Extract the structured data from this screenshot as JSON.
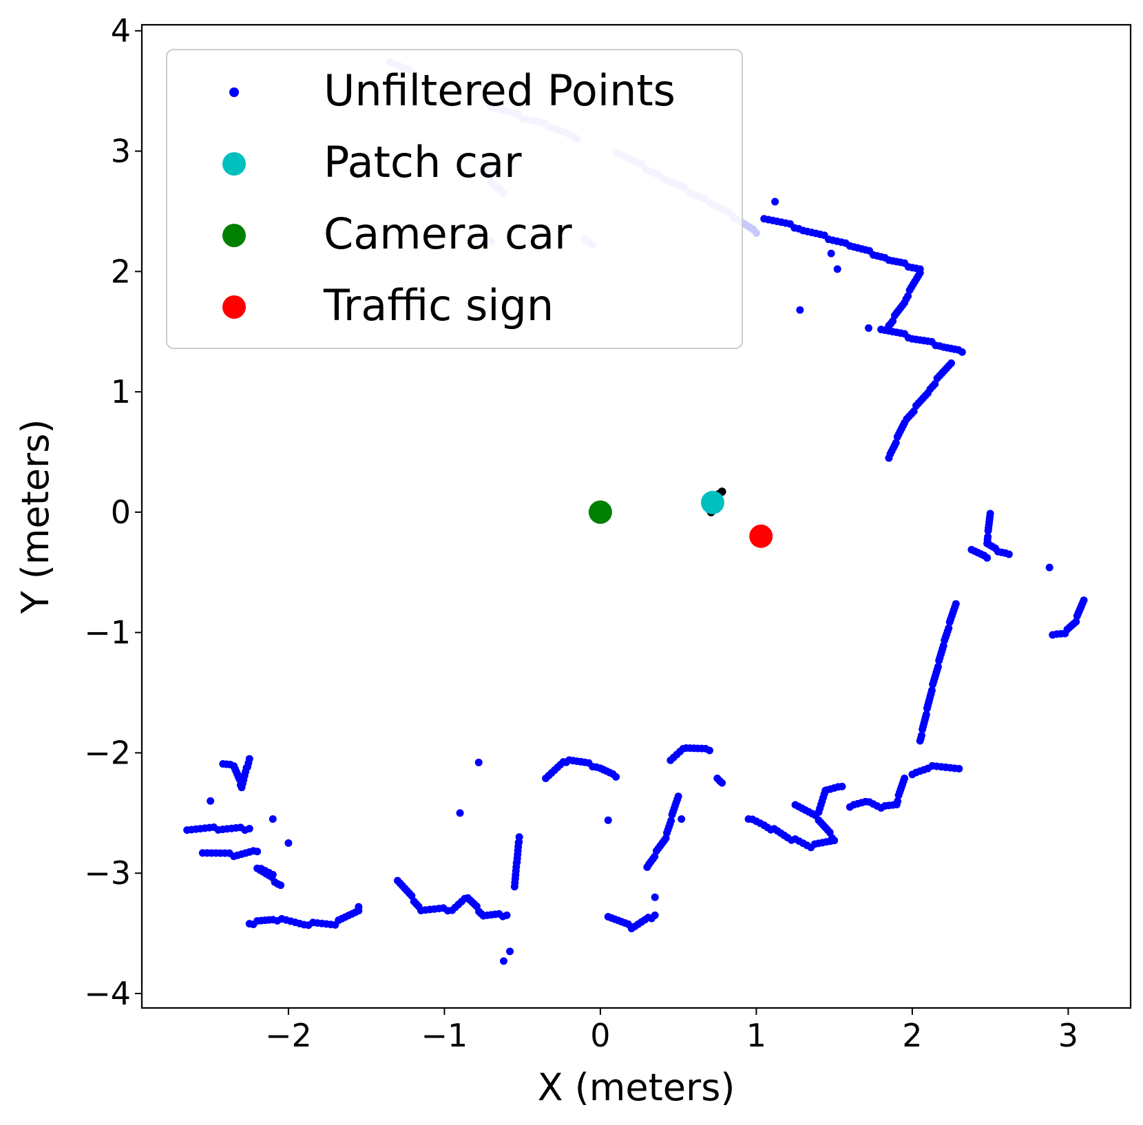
{
  "chart_data": {
    "type": "scatter",
    "title": "",
    "xlabel": "X (meters)",
    "ylabel": "Y (meters)",
    "xlim": [
      -2.94,
      3.4
    ],
    "ylim": [
      -4.12,
      4.05
    ],
    "xticks": [
      -2,
      -1,
      0,
      1,
      2,
      3
    ],
    "yticks": [
      -4,
      -3,
      -2,
      -1,
      0,
      1,
      2,
      3,
      4
    ],
    "xtick_labels": [
      "−2",
      "−1",
      "0",
      "1",
      "2",
      "3"
    ],
    "ytick_labels": [
      "−4",
      "−3",
      "−2",
      "−1",
      "0",
      "1",
      "2",
      "3",
      "4"
    ],
    "grid": false,
    "legend_position": "upper-left",
    "series": [
      {
        "name": "Unfiltered Points",
        "color": "#0000ff",
        "faded_color": "#c8c8ff",
        "faded_segments": [
          [
            [
              -0.7,
              3.38
            ],
            [
              -0.5,
              3.28
            ],
            [
              -0.3,
              3.2
            ],
            [
              -0.15,
              3.1
            ]
          ],
          [
            [
              0.1,
              3.0
            ],
            [
              0.4,
              2.78
            ],
            [
              0.7,
              2.58
            ],
            [
              0.9,
              2.42
            ],
            [
              1.0,
              2.32
            ]
          ],
          [
            [
              -0.75,
              2.9
            ],
            [
              -0.7,
              2.75
            ],
            [
              -0.62,
              2.65
            ]
          ],
          [
            [
              -0.78,
              2.3
            ],
            [
              -0.7,
              2.25
            ]
          ],
          [
            [
              -0.1,
              2.28
            ],
            [
              -0.05,
              2.22
            ]
          ],
          [
            [
              -1.35,
              3.75
            ],
            [
              -1.2,
              3.65
            ]
          ]
        ],
        "segments": [
          [
            [
              1.05,
              2.45
            ],
            [
              1.3,
              2.35
            ],
            [
              1.6,
              2.22
            ],
            [
              1.85,
              2.1
            ],
            [
              2.05,
              2.02
            ]
          ],
          [
            [
              2.05,
              2.0
            ],
            [
              1.95,
              1.75
            ],
            [
              1.85,
              1.55
            ]
          ],
          [
            [
              1.8,
              1.53
            ],
            [
              2.0,
              1.45
            ],
            [
              2.2,
              1.38
            ],
            [
              2.32,
              1.33
            ]
          ],
          [
            [
              2.25,
              1.25
            ],
            [
              2.1,
              1.0
            ],
            [
              1.95,
              0.75
            ],
            [
              1.85,
              0.45
            ]
          ],
          [
            [
              2.5,
              0.0
            ],
            [
              2.48,
              -0.25
            ],
            [
              2.55,
              -0.32
            ],
            [
              2.62,
              -0.35
            ]
          ],
          [
            [
              2.38,
              -0.3
            ],
            [
              2.48,
              -0.38
            ]
          ],
          [
            [
              2.28,
              -0.75
            ],
            [
              2.2,
              -1.1
            ],
            [
              2.12,
              -1.5
            ],
            [
              2.05,
              -1.9
            ]
          ],
          [
            [
              3.1,
              -0.72
            ],
            [
              3.05,
              -0.9
            ],
            [
              2.98,
              -1.0
            ],
            [
              2.9,
              -1.02
            ]
          ],
          [
            [
              2.3,
              -2.12
            ],
            [
              2.1,
              -2.12
            ],
            [
              2.0,
              -2.18
            ]
          ],
          [
            [
              1.95,
              -2.2
            ],
            [
              1.9,
              -2.42
            ],
            [
              1.8,
              -2.45
            ],
            [
              1.7,
              -2.4
            ],
            [
              1.6,
              -2.45
            ]
          ],
          [
            [
              1.25,
              -2.42
            ],
            [
              1.4,
              -2.55
            ],
            [
              1.5,
              -2.72
            ],
            [
              1.35,
              -2.78
            ],
            [
              1.2,
              -2.7
            ],
            [
              1.05,
              -2.6
            ],
            [
              0.95,
              -2.55
            ]
          ],
          [
            [
              1.4,
              -2.48
            ],
            [
              1.45,
              -2.3
            ],
            [
              1.55,
              -2.28
            ]
          ],
          [
            [
              0.45,
              -2.05
            ],
            [
              0.55,
              -1.95
            ],
            [
              0.7,
              -1.98
            ]
          ],
          [
            [
              0.75,
              -2.2
            ],
            [
              0.78,
              -2.25
            ]
          ],
          [
            [
              0.5,
              -2.35
            ],
            [
              0.42,
              -2.7
            ],
            [
              0.3,
              -2.95
            ]
          ],
          [
            [
              -0.35,
              -2.2
            ],
            [
              -0.2,
              -2.05
            ],
            [
              0.0,
              -2.12
            ],
            [
              0.1,
              -2.2
            ]
          ],
          [
            [
              0.05,
              -3.35
            ],
            [
              0.2,
              -3.45
            ],
            [
              0.35,
              -3.35
            ]
          ],
          [
            [
              -0.55,
              -3.1
            ],
            [
              -0.52,
              -2.7
            ]
          ],
          [
            [
              -1.3,
              -3.05
            ],
            [
              -1.15,
              -3.3
            ],
            [
              -0.95,
              -3.3
            ],
            [
              -0.85,
              -3.2
            ],
            [
              -0.75,
              -3.35
            ],
            [
              -0.6,
              -3.35
            ]
          ],
          [
            [
              -1.55,
              -3.3
            ],
            [
              -1.7,
              -3.42
            ],
            [
              -1.9,
              -3.42
            ],
            [
              -2.1,
              -3.38
            ],
            [
              -2.25,
              -3.42
            ]
          ],
          [
            [
              -2.1,
              -3.0
            ],
            [
              -2.2,
              -2.95
            ],
            [
              -2.05,
              -3.1
            ]
          ],
          [
            [
              -2.65,
              -2.63
            ],
            [
              -2.45,
              -2.63
            ],
            [
              -2.25,
              -2.63
            ]
          ],
          [
            [
              -2.55,
              -2.82
            ],
            [
              -2.35,
              -2.85
            ],
            [
              -2.2,
              -2.82
            ]
          ],
          [
            [
              -2.42,
              -2.08
            ],
            [
              -2.35,
              -2.1
            ],
            [
              -2.3,
              -2.28
            ],
            [
              -2.25,
              -2.05
            ]
          ]
        ],
        "points": [
          [
            1.12,
            2.58
          ],
          [
            1.48,
            2.15
          ],
          [
            1.52,
            2.02
          ],
          [
            1.28,
            1.68
          ],
          [
            1.72,
            1.53
          ],
          [
            2.88,
            -0.46
          ],
          [
            -0.58,
            -3.65
          ],
          [
            -0.62,
            -3.73
          ],
          [
            -0.78,
            -2.08
          ],
          [
            -0.9,
            -2.5
          ],
          [
            -2.0,
            -2.75
          ],
          [
            -2.1,
            -2.55
          ],
          [
            -1.55,
            -3.28
          ],
          [
            0.05,
            -2.56
          ],
          [
            0.35,
            -3.2
          ],
          [
            0.52,
            -2.55
          ],
          [
            -2.5,
            -2.4
          ],
          [
            -2.3,
            -2.2
          ]
        ]
      },
      {
        "name": "Patch car",
        "color": "#00bfbf",
        "x": [
          0.72
        ],
        "y": [
          0.08
        ]
      },
      {
        "name": "Camera car",
        "color": "#008000",
        "x": [
          0.0
        ],
        "y": [
          0.0
        ]
      },
      {
        "name": "Traffic sign",
        "color": "#ff0000",
        "x": [
          1.03
        ],
        "y": [
          -0.2
        ]
      },
      {
        "name": "",
        "color": "#000000",
        "x": [
          0.7,
          0.74,
          0.76,
          0.78,
          0.73,
          0.71
        ],
        "y": [
          0.02,
          0.04,
          0.15,
          0.17,
          0.12,
          0.0
        ]
      }
    ]
  }
}
